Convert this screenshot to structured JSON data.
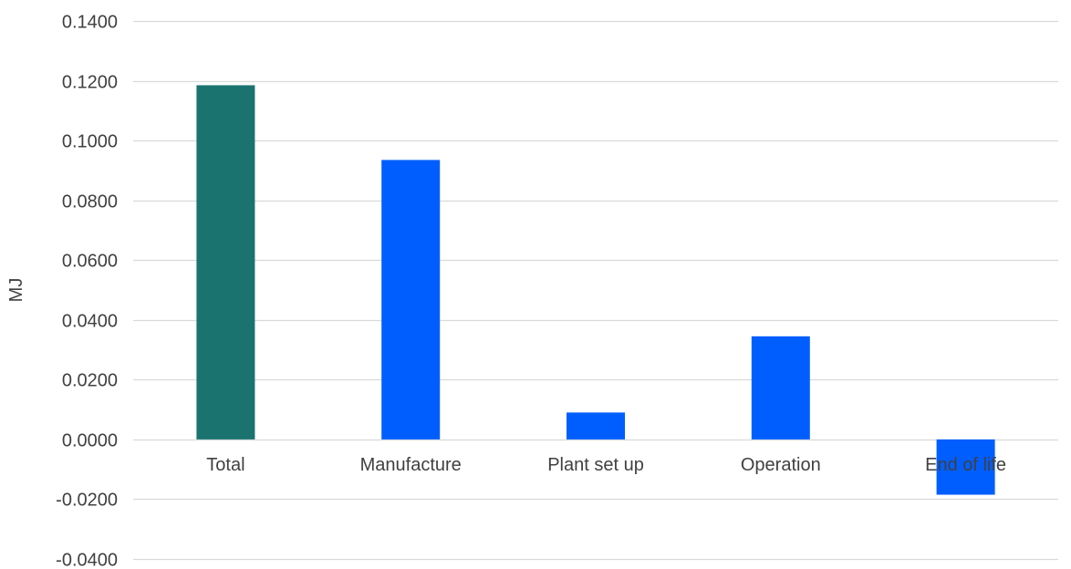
{
  "chart_data": {
    "type": "bar",
    "categories": [
      "Total",
      "Manufacture",
      "Plant set up",
      "Operation",
      "End of life"
    ],
    "values": [
      0.1185,
      0.0935,
      0.009,
      0.0345,
      -0.0185
    ],
    "ylabel": "MJ",
    "xlabel": "",
    "ylim": [
      -0.04,
      0.14
    ],
    "yticks": [
      0.14,
      0.12,
      0.1,
      0.08,
      0.06,
      0.04,
      0.02,
      0.0,
      -0.02,
      -0.04
    ],
    "ytick_labels": [
      "0.1400",
      "0.1200",
      "0.1000",
      "0.0800",
      "0.0600",
      "0.0400",
      "0.0200",
      "0.0000",
      "-0.0200",
      "-0.0400"
    ],
    "bar_colors": [
      "#1a736f",
      "#005eff",
      "#005eff",
      "#005eff",
      "#005eff"
    ],
    "gridlines": true,
    "gridline_color": "#d9d9d9",
    "label_color": "#404040",
    "legend": false
  }
}
